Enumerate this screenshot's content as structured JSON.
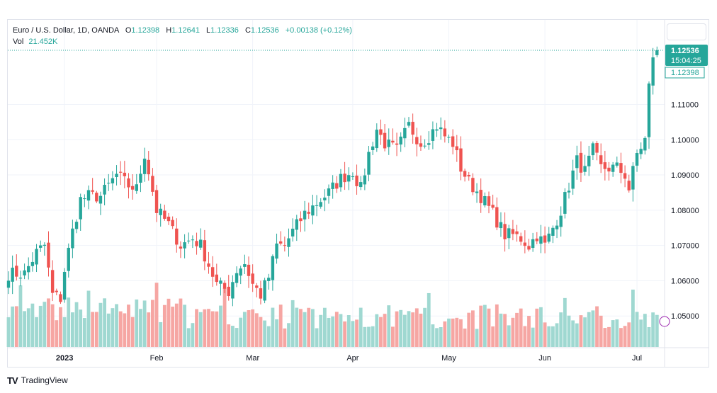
{
  "header": {
    "symbol": "Euro / U.S. Dollar, 1D, OANDA",
    "o_label": "O",
    "o_value": "1.12398",
    "h_label": "H",
    "h_value": "1.12641",
    "l_label": "L",
    "l_value": "1.12336",
    "c_label": "C",
    "c_value": "1.12536",
    "change": "+0.00138 (+0.12%)",
    "vol_label": "Vol",
    "vol_value": "21.452K"
  },
  "price_tag": {
    "last": "1.12536",
    "countdown": "15:04:25",
    "open": "1.12398"
  },
  "footer": {
    "logo": "TV",
    "brand": "TradingView"
  },
  "colors": {
    "up": "#26a69a",
    "down": "#ef5350",
    "vol_up": "#9fd8d1",
    "vol_down": "#f6a6a3",
    "grid": "#f0f3fa",
    "text": "#131722"
  },
  "chart_data": {
    "type": "candlestick",
    "symbol": "EURUSD",
    "interval": "1D",
    "ylim": [
      1.041,
      1.134
    ],
    "yticks": [
      "1.05000",
      "1.06000",
      "1.07000",
      "1.08000",
      "1.09000",
      "1.10000",
      "1.11000"
    ],
    "xticks": [
      "2023",
      "Feb",
      "Mar",
      "Apr",
      "May",
      "Jun",
      "Jul"
    ],
    "xtick_day_index": [
      14,
      37,
      61,
      86,
      110,
      134,
      157
    ],
    "anchors": [
      [
        0,
        1.062
      ],
      [
        4,
        1.062
      ],
      [
        7,
        1.068
      ],
      [
        9,
        1.07
      ],
      [
        11,
        1.056
      ],
      [
        13,
        1.055
      ],
      [
        14,
        1.063
      ],
      [
        16,
        1.074
      ],
      [
        18,
        1.083
      ],
      [
        20,
        1.084
      ],
      [
        23,
        1.084
      ],
      [
        27,
        1.09
      ],
      [
        30,
        1.087
      ],
      [
        32,
        1.086
      ],
      [
        34,
        1.096
      ],
      [
        35,
        1.091
      ],
      [
        37,
        1.08
      ],
      [
        40,
        1.076
      ],
      [
        43,
        1.07
      ],
      [
        46,
        1.072
      ],
      [
        48,
        1.07
      ],
      [
        52,
        1.059
      ],
      [
        55,
        1.057
      ],
      [
        57,
        1.063
      ],
      [
        59,
        1.065
      ],
      [
        61,
        1.059
      ],
      [
        63,
        1.056
      ],
      [
        65,
        1.061
      ],
      [
        67,
        1.07
      ],
      [
        69,
        1.07
      ],
      [
        71,
        1.074
      ],
      [
        74,
        1.079
      ],
      [
        77,
        1.082
      ],
      [
        80,
        1.085
      ],
      [
        83,
        1.089
      ],
      [
        86,
        1.091
      ],
      [
        88,
        1.086
      ],
      [
        90,
        1.096
      ],
      [
        92,
        1.103
      ],
      [
        94,
        1.099
      ],
      [
        97,
        1.097
      ],
      [
        100,
        1.104
      ],
      [
        103,
        1.099
      ],
      [
        105,
        1.101
      ],
      [
        107,
        1.104
      ],
      [
        109,
        1.101
      ],
      [
        111,
        1.099
      ],
      [
        113,
        1.092
      ],
      [
        115,
        1.088
      ],
      [
        118,
        1.084
      ],
      [
        121,
        1.079
      ],
      [
        124,
        1.073
      ],
      [
        126,
        1.073
      ],
      [
        128,
        1.072
      ],
      [
        130,
        1.07
      ],
      [
        132,
        1.073
      ],
      [
        134,
        1.07
      ],
      [
        136,
        1.075
      ],
      [
        138,
        1.08
      ],
      [
        140,
        1.087
      ],
      [
        142,
        1.094
      ],
      [
        144,
        1.091
      ],
      [
        146,
        1.097
      ],
      [
        148,
        1.092
      ],
      [
        150,
        1.092
      ],
      [
        152,
        1.092
      ],
      [
        154,
        1.09
      ],
      [
        155,
        1.086
      ],
      [
        157,
        1.096
      ],
      [
        159,
        1.1
      ],
      [
        160,
        1.115
      ],
      [
        161,
        1.124
      ],
      [
        162,
        1.1254
      ]
    ],
    "last": {
      "open": 1.12398,
      "high": 1.12641,
      "low": 1.12336,
      "close": 1.12536
    },
    "volume_range": [
      0,
      0.9
    ],
    "volume_last": "21.452K"
  }
}
